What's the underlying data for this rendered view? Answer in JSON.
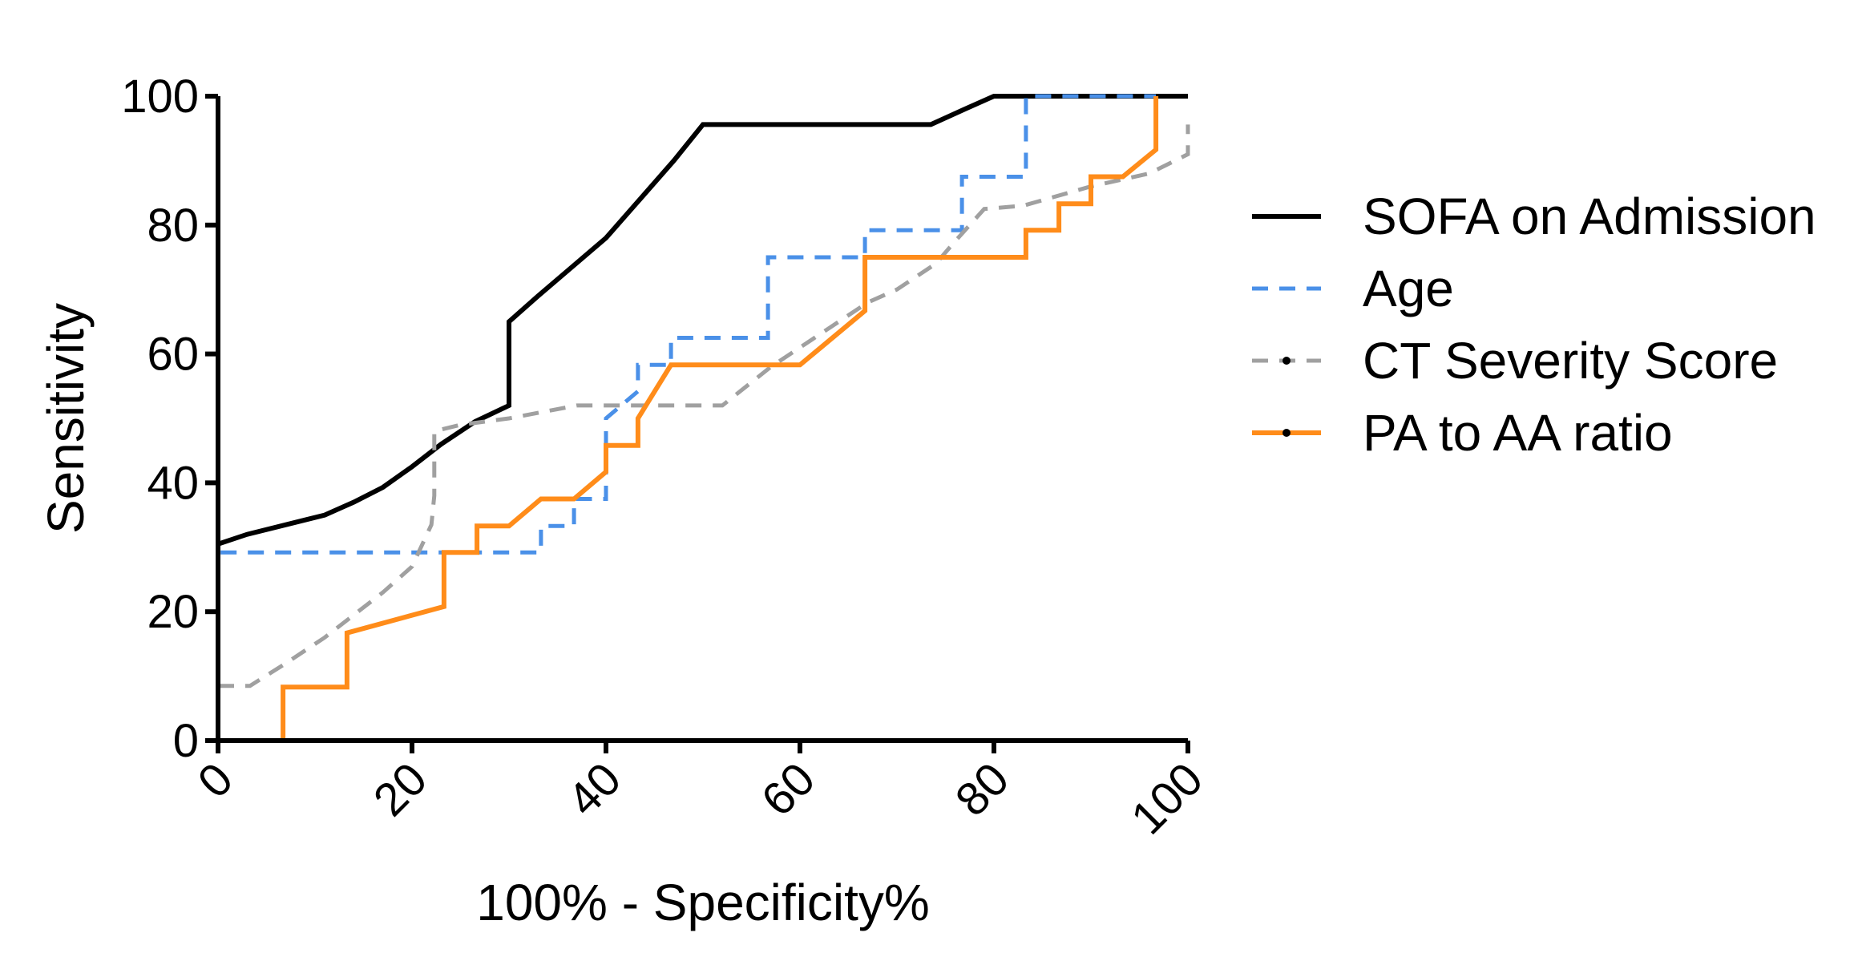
{
  "chart_data": {
    "type": "line",
    "title": "",
    "xlabel": "100% - Specificity%",
    "ylabel": "Sensitivity",
    "xlim": [
      0,
      100
    ],
    "ylim": [
      0,
      100
    ],
    "xticks": [
      "0",
      "20",
      "40",
      "60",
      "80",
      "100"
    ],
    "yticks": [
      "0",
      "20",
      "40",
      "60",
      "80",
      "100"
    ],
    "grid": false,
    "legend_position": "right",
    "series": [
      {
        "name": "SOFA on Admission",
        "color": "#000000",
        "dash": "solid",
        "points": [
          [
            0,
            30.5
          ],
          [
            3,
            32
          ],
          [
            7,
            33.5
          ],
          [
            11,
            35
          ],
          [
            14,
            37
          ],
          [
            17,
            39.3
          ],
          [
            20,
            42.5
          ],
          [
            23,
            46
          ],
          [
            26.5,
            49.5
          ],
          [
            30,
            52
          ],
          [
            30,
            65
          ],
          [
            33,
            69
          ],
          [
            36.5,
            73.5
          ],
          [
            40,
            78
          ],
          [
            43.5,
            84
          ],
          [
            47,
            90
          ],
          [
            50,
            95.6
          ],
          [
            57,
            95.6
          ],
          [
            63,
            95.6
          ],
          [
            73.5,
            95.6
          ],
          [
            77,
            98
          ],
          [
            80,
            100
          ],
          [
            100,
            100
          ]
        ]
      },
      {
        "name": "Age",
        "color": "#4a90e8",
        "dash": "dash",
        "points": [
          [
            0,
            0
          ],
          [
            0,
            29.2
          ],
          [
            33.3,
            29.2
          ],
          [
            33.3,
            33.3
          ],
          [
            36.7,
            33.3
          ],
          [
            36.7,
            37.5
          ],
          [
            40,
            37.5
          ],
          [
            40,
            50
          ],
          [
            43.3,
            54.2
          ],
          [
            43.3,
            58.3
          ],
          [
            46.7,
            58.3
          ],
          [
            46.7,
            62.5
          ],
          [
            56.7,
            62.5
          ],
          [
            56.7,
            75
          ],
          [
            66.7,
            75
          ],
          [
            66.7,
            79.2
          ],
          [
            76.7,
            79.2
          ],
          [
            76.7,
            87.5
          ],
          [
            83.3,
            87.5
          ],
          [
            83.3,
            100
          ],
          [
            96.7,
            100
          ]
        ]
      },
      {
        "name": "CT Severity Score",
        "color": "#a0a0a0",
        "dash": "dash",
        "points": [
          [
            0,
            8.5
          ],
          [
            3.3,
            8.5
          ],
          [
            7,
            12
          ],
          [
            11,
            16
          ],
          [
            14,
            19.5
          ],
          [
            17,
            23
          ],
          [
            20,
            27
          ],
          [
            22,
            33.5
          ],
          [
            22.3,
            38
          ],
          [
            22.3,
            48
          ],
          [
            25,
            49
          ],
          [
            30,
            50
          ],
          [
            37,
            52
          ],
          [
            45,
            52
          ],
          [
            52,
            52
          ],
          [
            57,
            58
          ],
          [
            60,
            61
          ],
          [
            63,
            64
          ],
          [
            67,
            68
          ],
          [
            70,
            70
          ],
          [
            74,
            74
          ],
          [
            76,
            77.5
          ],
          [
            79,
            82.5
          ],
          [
            83,
            83
          ],
          [
            90,
            86
          ],
          [
            96,
            88
          ],
          [
            100,
            91
          ],
          [
            100,
            95.6
          ]
        ]
      },
      {
        "name": "PA to AA ratio",
        "color": "#ff8c1a",
        "dash": "solid",
        "points": [
          [
            3.3,
            0
          ],
          [
            6.7,
            0
          ],
          [
            6.7,
            8.3
          ],
          [
            13.3,
            8.3
          ],
          [
            13.3,
            16.7
          ],
          [
            23.3,
            20.8
          ],
          [
            23.3,
            29.2
          ],
          [
            26.7,
            29.2
          ],
          [
            26.7,
            33.3
          ],
          [
            30,
            33.3
          ],
          [
            33.3,
            37.5
          ],
          [
            36.7,
            37.5
          ],
          [
            40,
            41.7
          ],
          [
            40,
            45.8
          ],
          [
            43.3,
            45.8
          ],
          [
            43.3,
            50
          ],
          [
            46.7,
            58.3
          ],
          [
            60,
            58.3
          ],
          [
            66.7,
            66.7
          ],
          [
            66.7,
            75
          ],
          [
            83.3,
            75
          ],
          [
            83.3,
            79.2
          ],
          [
            86.7,
            79.2
          ],
          [
            86.7,
            83.3
          ],
          [
            90,
            83.3
          ],
          [
            90,
            87.5
          ],
          [
            93.3,
            87.5
          ],
          [
            96.7,
            91.7
          ],
          [
            96.7,
            100
          ]
        ]
      }
    ]
  }
}
